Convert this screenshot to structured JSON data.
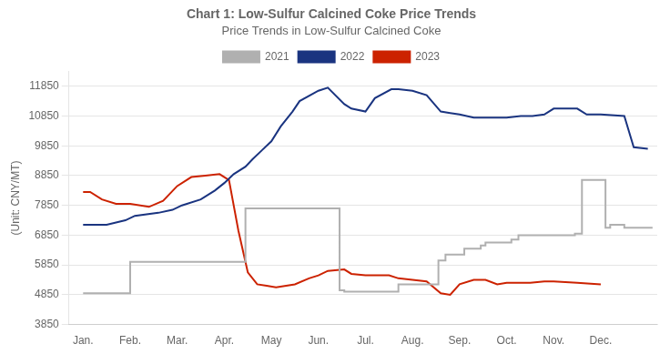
{
  "chart_data": {
    "type": "line",
    "title": "Chart 1: Low-Sulfur Calcined Coke Price Trends",
    "subtitle": "Price Trends in Low-Sulfur Calcined Coke",
    "ylabel": "(Unit: CNY/MT)",
    "xlim": [
      -0.3,
      12.2
    ],
    "xticks": [
      {
        "value": 0,
        "label": "Jan."
      },
      {
        "value": 1,
        "label": "Feb."
      },
      {
        "value": 2,
        "label": "Mar."
      },
      {
        "value": 3,
        "label": "Apr."
      },
      {
        "value": 4,
        "label": "May"
      },
      {
        "value": 5,
        "label": "Jun."
      },
      {
        "value": 6,
        "label": "Jul."
      },
      {
        "value": 7,
        "label": "Aug."
      },
      {
        "value": 8,
        "label": "Sep."
      },
      {
        "value": 9,
        "label": "Oct."
      },
      {
        "value": 10,
        "label": "Nov."
      },
      {
        "value": 11,
        "label": "Dec."
      }
    ],
    "ylim": [
      3850,
      12350
    ],
    "yticks": [
      3850,
      4850,
      5850,
      6850,
      7850,
      8850,
      9850,
      10850,
      11850
    ],
    "grid": "y",
    "legend": "top",
    "series": [
      {
        "name": "2021",
        "color": "#b0b0b0",
        "x": [
          0,
          0.05,
          0.05,
          1.0,
          1.0,
          1.45,
          1.45,
          2.55,
          2.55,
          3.45,
          3.45,
          3.6,
          3.6,
          5.45,
          5.45,
          5.55,
          5.55,
          6.55,
          6.55,
          6.7,
          6.7,
          7.0,
          7.0,
          7.55,
          7.55,
          7.7,
          7.7,
          8.1,
          8.1,
          8.45,
          8.45,
          8.55,
          8.55,
          9.1,
          9.1,
          9.25,
          9.25,
          10.45,
          10.45,
          10.6,
          10.6,
          11.1,
          11.1,
          11.2,
          11.2,
          11.5,
          11.5,
          12.1
        ],
        "values": [
          4900,
          4900,
          4900,
          4900,
          5950,
          5950,
          5950,
          5950,
          5950,
          5950,
          7750,
          7750,
          7750,
          7750,
          5000,
          5000,
          4950,
          4950,
          4950,
          4950,
          5200,
          5200,
          5200,
          5200,
          6000,
          6000,
          6200,
          6200,
          6400,
          6400,
          6500,
          6500,
          6600,
          6600,
          6700,
          6700,
          6850,
          6850,
          6900,
          6900,
          8700,
          8700,
          7100,
          7100,
          7200,
          7200,
          7100,
          7100
        ]
      },
      {
        "name": "2022",
        "color": "#1a3480",
        "x": [
          0,
          0.5,
          0.9,
          1.1,
          1.6,
          1.9,
          2.1,
          2.5,
          2.8,
          3.0,
          3.2,
          3.45,
          3.6,
          3.8,
          4.0,
          4.2,
          4.45,
          4.6,
          5.0,
          5.2,
          5.55,
          5.7,
          6.0,
          6.2,
          6.55,
          6.7,
          7.0,
          7.3,
          7.6,
          7.8,
          8.0,
          8.3,
          8.55,
          8.7,
          9.0,
          9.3,
          9.55,
          9.8,
          10.0,
          10.5,
          10.7,
          11.0,
          11.5,
          11.7,
          12.0
        ],
        "values": [
          7200,
          7200,
          7350,
          7500,
          7600,
          7700,
          7850,
          8050,
          8350,
          8600,
          8900,
          9150,
          9400,
          9700,
          10000,
          10500,
          11000,
          11350,
          11700,
          11800,
          11250,
          11100,
          11000,
          11450,
          11750,
          11750,
          11700,
          11550,
          11000,
          10950,
          10900,
          10800,
          10800,
          10800,
          10800,
          10850,
          10850,
          10900,
          11100,
          11100,
          10900,
          10900,
          10850,
          9800,
          9750
        ]
      },
      {
        "name": "2023",
        "color": "#cc2200",
        "x": [
          0,
          0.15,
          0.4,
          0.7,
          1.0,
          1.4,
          1.7,
          2.0,
          2.3,
          2.6,
          2.9,
          3.1,
          3.3,
          3.5,
          3.7,
          3.9,
          4.1,
          4.5,
          4.8,
          5.0,
          5.2,
          5.55,
          5.7,
          6.0,
          6.5,
          6.7,
          7.0,
          7.3,
          7.6,
          7.8,
          8.0,
          8.3,
          8.55,
          8.8,
          9.0,
          9.5,
          9.8,
          10.0,
          10.5,
          11.0
        ],
        "values": [
          8300,
          8300,
          8050,
          7900,
          7900,
          7800,
          8000,
          8500,
          8800,
          8850,
          8900,
          8700,
          7000,
          5600,
          5200,
          5150,
          5100,
          5200,
          5400,
          5500,
          5650,
          5700,
          5550,
          5500,
          5500,
          5400,
          5350,
          5300,
          4900,
          4850,
          5200,
          5350,
          5350,
          5200,
          5250,
          5250,
          5300,
          5300,
          5250,
          5200
        ]
      }
    ]
  }
}
